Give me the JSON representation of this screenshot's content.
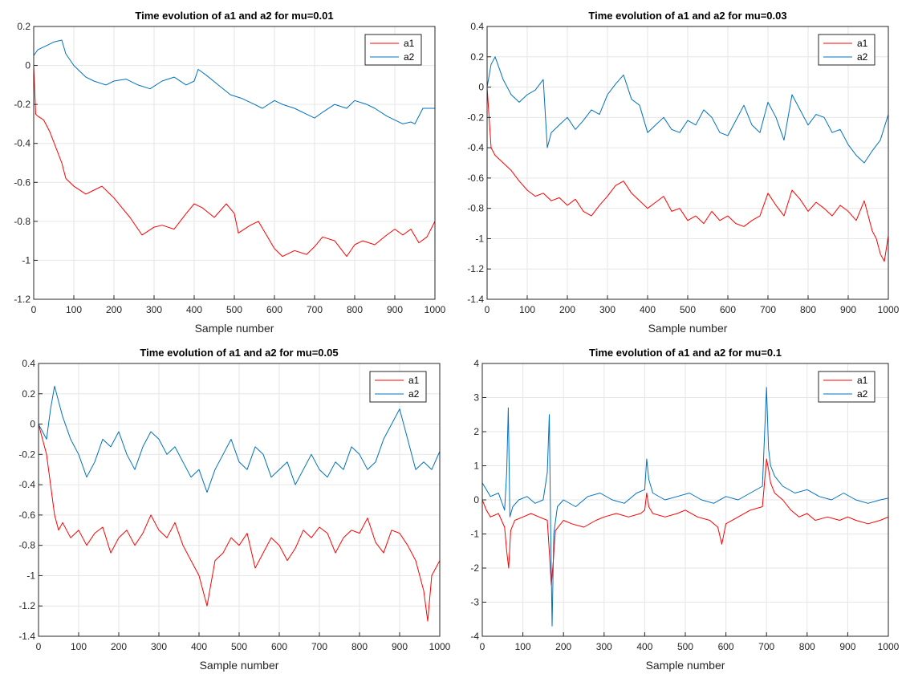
{
  "figure": {
    "background": "#ffffff"
  },
  "chart_data": [
    {
      "type": "line",
      "title": "Time evolution of a1 and a2 for mu=0.01",
      "xlabel": "Sample number",
      "ylabel": "",
      "xlim": [
        0,
        1000
      ],
      "ylim": [
        -1.2,
        0.2
      ],
      "xticks": [
        0,
        100,
        200,
        300,
        400,
        500,
        600,
        700,
        800,
        900,
        1000
      ],
      "yticks": [
        -1.2,
        -1,
        -0.8,
        -0.6,
        -0.4,
        -0.2,
        0,
        0.2
      ],
      "grid": true,
      "legend_position": "top-right",
      "series": [
        {
          "name": "a1",
          "color": "#ff0000",
          "x": [
            0,
            5,
            10,
            25,
            40,
            55,
            70,
            80,
            100,
            130,
            150,
            170,
            190,
            200,
            220,
            240,
            270,
            300,
            320,
            350,
            380,
            400,
            420,
            450,
            480,
            500,
            510,
            540,
            560,
            580,
            600,
            620,
            650,
            680,
            700,
            720,
            750,
            780,
            800,
            820,
            850,
            880,
            900,
            920,
            940,
            960,
            980,
            1000
          ],
          "y": [
            0,
            -0.25,
            -0.26,
            -0.28,
            -0.34,
            -0.42,
            -0.5,
            -0.58,
            -0.62,
            -0.66,
            -0.64,
            -0.62,
            -0.66,
            -0.68,
            -0.73,
            -0.78,
            -0.87,
            -0.83,
            -0.82,
            -0.84,
            -0.76,
            -0.71,
            -0.73,
            -0.78,
            -0.71,
            -0.76,
            -0.86,
            -0.82,
            -0.8,
            -0.87,
            -0.94,
            -0.98,
            -0.95,
            -0.97,
            -0.93,
            -0.88,
            -0.9,
            -0.98,
            -0.92,
            -0.9,
            -0.92,
            -0.87,
            -0.84,
            -0.87,
            -0.84,
            -0.91,
            -0.88,
            -0.8
          ]
        },
        {
          "name": "a2",
          "color": "#0072bd",
          "x": [
            0,
            10,
            30,
            50,
            70,
            80,
            100,
            130,
            150,
            180,
            200,
            230,
            260,
            290,
            320,
            350,
            380,
            400,
            410,
            430,
            460,
            490,
            520,
            550,
            570,
            600,
            620,
            650,
            680,
            700,
            720,
            750,
            780,
            800,
            830,
            850,
            880,
            900,
            920,
            940,
            950,
            970,
            1000
          ],
          "y": [
            0.05,
            0.08,
            0.1,
            0.12,
            0.13,
            0.06,
            0.0,
            -0.06,
            -0.08,
            -0.1,
            -0.08,
            -0.07,
            -0.1,
            -0.12,
            -0.08,
            -0.06,
            -0.1,
            -0.08,
            -0.02,
            -0.05,
            -0.1,
            -0.15,
            -0.17,
            -0.2,
            -0.22,
            -0.18,
            -0.2,
            -0.22,
            -0.25,
            -0.27,
            -0.24,
            -0.2,
            -0.22,
            -0.18,
            -0.2,
            -0.22,
            -0.26,
            -0.28,
            -0.3,
            -0.29,
            -0.3,
            -0.22,
            -0.22
          ]
        }
      ]
    },
    {
      "type": "line",
      "title": "Time evolution of a1 and a2 for mu=0.03",
      "xlabel": "Sample number",
      "ylabel": "",
      "xlim": [
        0,
        1000
      ],
      "ylim": [
        -1.4,
        0.4
      ],
      "xticks": [
        0,
        100,
        200,
        300,
        400,
        500,
        600,
        700,
        800,
        900,
        1000
      ],
      "yticks": [
        -1.4,
        -1.2,
        -1,
        -0.8,
        -0.6,
        -0.4,
        -0.2,
        0,
        0.2,
        0.4
      ],
      "grid": true,
      "legend_position": "top-right",
      "series": [
        {
          "name": "a1",
          "color": "#ff0000",
          "x": [
            0,
            10,
            20,
            40,
            60,
            80,
            100,
            120,
            140,
            160,
            180,
            200,
            220,
            240,
            260,
            280,
            300,
            320,
            340,
            360,
            380,
            400,
            420,
            440,
            460,
            480,
            500,
            520,
            540,
            560,
            580,
            600,
            620,
            640,
            660,
            680,
            700,
            720,
            740,
            760,
            780,
            800,
            820,
            840,
            860,
            880,
            900,
            920,
            940,
            960,
            970,
            980,
            990,
            1000
          ],
          "y": [
            0,
            -0.4,
            -0.45,
            -0.5,
            -0.55,
            -0.62,
            -0.68,
            -0.72,
            -0.7,
            -0.75,
            -0.73,
            -0.78,
            -0.74,
            -0.82,
            -0.85,
            -0.78,
            -0.72,
            -0.65,
            -0.62,
            -0.7,
            -0.75,
            -0.8,
            -0.76,
            -0.72,
            -0.82,
            -0.8,
            -0.88,
            -0.85,
            -0.9,
            -0.82,
            -0.88,
            -0.85,
            -0.9,
            -0.92,
            -0.88,
            -0.85,
            -0.7,
            -0.78,
            -0.85,
            -0.68,
            -0.74,
            -0.82,
            -0.76,
            -0.8,
            -0.85,
            -0.78,
            -0.82,
            -0.88,
            -0.75,
            -0.95,
            -1.0,
            -1.1,
            -1.15,
            -0.98
          ]
        },
        {
          "name": "a2",
          "color": "#0072bd",
          "x": [
            0,
            10,
            20,
            40,
            60,
            80,
            100,
            120,
            140,
            150,
            160,
            180,
            200,
            220,
            240,
            260,
            280,
            300,
            320,
            340,
            360,
            380,
            400,
            420,
            440,
            460,
            480,
            500,
            520,
            540,
            560,
            580,
            600,
            620,
            640,
            660,
            680,
            700,
            720,
            740,
            760,
            780,
            800,
            820,
            840,
            860,
            880,
            900,
            920,
            940,
            960,
            980,
            1000
          ],
          "y": [
            0,
            0.15,
            0.2,
            0.05,
            -0.05,
            -0.1,
            -0.05,
            -0.02,
            0.05,
            -0.4,
            -0.3,
            -0.25,
            -0.2,
            -0.28,
            -0.22,
            -0.15,
            -0.18,
            -0.05,
            0.02,
            0.08,
            -0.08,
            -0.12,
            -0.3,
            -0.25,
            -0.2,
            -0.28,
            -0.3,
            -0.22,
            -0.25,
            -0.15,
            -0.2,
            -0.3,
            -0.32,
            -0.22,
            -0.12,
            -0.25,
            -0.3,
            -0.1,
            -0.2,
            -0.35,
            -0.05,
            -0.15,
            -0.25,
            -0.18,
            -0.2,
            -0.3,
            -0.28,
            -0.38,
            -0.45,
            -0.5,
            -0.42,
            -0.35,
            -0.18
          ]
        }
      ]
    },
    {
      "type": "line",
      "title": "Time evolution of a1 and a2 for mu=0.05",
      "xlabel": "Sample number",
      "ylabel": "",
      "xlim": [
        0,
        1000
      ],
      "ylim": [
        -1.4,
        0.4
      ],
      "xticks": [
        0,
        100,
        200,
        300,
        400,
        500,
        600,
        700,
        800,
        900,
        1000
      ],
      "yticks": [
        -1.4,
        -1.2,
        -1,
        -0.8,
        -0.6,
        -0.4,
        -0.2,
        0,
        0.2,
        0.4
      ],
      "grid": true,
      "legend_position": "top-right",
      "series": [
        {
          "name": "a1",
          "color": "#ff0000",
          "x": [
            0,
            10,
            20,
            30,
            40,
            50,
            60,
            80,
            100,
            120,
            140,
            160,
            180,
            200,
            220,
            240,
            260,
            280,
            300,
            320,
            340,
            360,
            380,
            400,
            420,
            440,
            460,
            480,
            500,
            520,
            540,
            560,
            580,
            600,
            620,
            640,
            660,
            680,
            700,
            720,
            740,
            760,
            780,
            800,
            820,
            840,
            860,
            880,
            900,
            920,
            940,
            960,
            970,
            980,
            1000
          ],
          "y": [
            0,
            -0.1,
            -0.2,
            -0.4,
            -0.6,
            -0.7,
            -0.65,
            -0.75,
            -0.7,
            -0.8,
            -0.72,
            -0.68,
            -0.85,
            -0.75,
            -0.7,
            -0.8,
            -0.72,
            -0.6,
            -0.7,
            -0.75,
            -0.65,
            -0.8,
            -0.9,
            -1.0,
            -1.2,
            -0.9,
            -0.85,
            -0.75,
            -0.8,
            -0.72,
            -0.95,
            -0.85,
            -0.75,
            -0.8,
            -0.9,
            -0.82,
            -0.7,
            -0.75,
            -0.68,
            -0.72,
            -0.85,
            -0.75,
            -0.7,
            -0.72,
            -0.62,
            -0.78,
            -0.85,
            -0.7,
            -0.72,
            -0.8,
            -0.9,
            -1.1,
            -1.3,
            -1.0,
            -0.9
          ]
        },
        {
          "name": "a2",
          "color": "#0072bd",
          "x": [
            0,
            10,
            20,
            30,
            40,
            50,
            60,
            80,
            100,
            120,
            140,
            160,
            180,
            200,
            220,
            240,
            260,
            280,
            300,
            320,
            340,
            360,
            380,
            400,
            420,
            440,
            460,
            480,
            500,
            520,
            540,
            560,
            580,
            600,
            620,
            640,
            660,
            680,
            700,
            720,
            740,
            760,
            780,
            800,
            820,
            840,
            860,
            880,
            900,
            920,
            940,
            960,
            980,
            1000
          ],
          "y": [
            0,
            -0.05,
            -0.1,
            0.1,
            0.25,
            0.15,
            0.05,
            -0.1,
            -0.2,
            -0.35,
            -0.25,
            -0.1,
            -0.15,
            -0.05,
            -0.2,
            -0.3,
            -0.15,
            -0.05,
            -0.1,
            -0.2,
            -0.15,
            -0.25,
            -0.35,
            -0.3,
            -0.45,
            -0.3,
            -0.2,
            -0.1,
            -0.25,
            -0.3,
            -0.15,
            -0.2,
            -0.35,
            -0.3,
            -0.25,
            -0.4,
            -0.3,
            -0.2,
            -0.3,
            -0.35,
            -0.25,
            -0.3,
            -0.15,
            -0.2,
            -0.3,
            -0.25,
            -0.1,
            0.0,
            0.1,
            -0.1,
            -0.3,
            -0.25,
            -0.3,
            -0.18
          ]
        }
      ]
    },
    {
      "type": "line",
      "title": "Time evolution of a1 and a2 for mu=0.1",
      "xlabel": "Sample number",
      "ylabel": "",
      "xlim": [
        0,
        1000
      ],
      "ylim": [
        -4,
        4
      ],
      "xticks": [
        0,
        100,
        200,
        300,
        400,
        500,
        600,
        700,
        800,
        900,
        1000
      ],
      "yticks": [
        -4,
        -3,
        -2,
        -1,
        0,
        1,
        2,
        3,
        4
      ],
      "grid": true,
      "legend_position": "top-right",
      "series": [
        {
          "name": "a1",
          "color": "#ff0000",
          "x": [
            0,
            10,
            20,
            40,
            55,
            60,
            65,
            70,
            80,
            100,
            120,
            140,
            160,
            165,
            170,
            175,
            180,
            200,
            220,
            250,
            280,
            300,
            330,
            360,
            390,
            400,
            405,
            410,
            420,
            450,
            480,
            500,
            530,
            560,
            580,
            590,
            600,
            630,
            660,
            690,
            700,
            705,
            710,
            720,
            740,
            760,
            780,
            800,
            820,
            850,
            880,
            900,
            920,
            950,
            980,
            1000
          ],
          "y": [
            0,
            -0.3,
            -0.5,
            -0.4,
            -0.8,
            -1.5,
            -2.0,
            -0.9,
            -0.6,
            -0.5,
            -0.4,
            -0.5,
            -0.6,
            -1.5,
            -2.5,
            -1.8,
            -0.9,
            -0.6,
            -0.7,
            -0.8,
            -0.6,
            -0.5,
            -0.4,
            -0.5,
            -0.4,
            -0.3,
            0.2,
            -0.2,
            -0.4,
            -0.5,
            -0.4,
            -0.3,
            -0.5,
            -0.6,
            -0.8,
            -1.3,
            -0.7,
            -0.5,
            -0.3,
            -0.2,
            1.2,
            0.9,
            0.5,
            0.2,
            0.0,
            -0.3,
            -0.5,
            -0.4,
            -0.6,
            -0.5,
            -0.6,
            -0.5,
            -0.6,
            -0.7,
            -0.6,
            -0.5
          ]
        },
        {
          "name": "a2",
          "color": "#0072bd",
          "x": [
            0,
            10,
            20,
            40,
            55,
            60,
            64,
            68,
            75,
            90,
            110,
            130,
            150,
            160,
            165,
            168,
            172,
            176,
            185,
            200,
            230,
            260,
            290,
            320,
            350,
            380,
            400,
            405,
            410,
            420,
            450,
            480,
            510,
            540,
            570,
            600,
            630,
            660,
            690,
            700,
            705,
            710,
            720,
            740,
            770,
            800,
            830,
            860,
            890,
            920,
            950,
            980,
            1000
          ],
          "y": [
            0.5,
            0.3,
            0.1,
            0.2,
            -0.3,
            0.8,
            2.7,
            -0.5,
            -0.2,
            0.0,
            0.1,
            -0.1,
            0.0,
            0.8,
            2.5,
            -0.5,
            -3.7,
            -1.0,
            -0.2,
            0.0,
            -0.2,
            0.1,
            0.2,
            0.0,
            -0.1,
            0.2,
            0.3,
            1.2,
            0.6,
            0.2,
            0.0,
            0.1,
            0.2,
            0.0,
            -0.1,
            0.1,
            0.0,
            0.2,
            0.4,
            3.3,
            1.5,
            1.0,
            0.7,
            0.4,
            0.2,
            0.3,
            0.1,
            0.0,
            0.2,
            0.0,
            -0.1,
            0.0,
            0.05
          ]
        }
      ]
    }
  ]
}
